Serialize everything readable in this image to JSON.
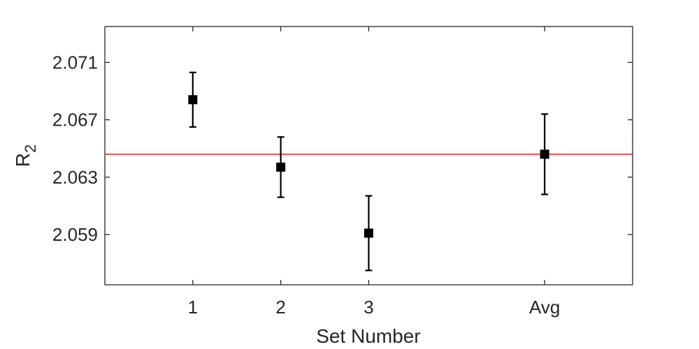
{
  "chart_data": {
    "type": "scatter",
    "title": "",
    "xlabel": "Set Number",
    "ylabel": {
      "base": "R",
      "subscript": "2"
    },
    "categories": [
      "1",
      "2",
      "3",
      "Avg"
    ],
    "x": [
      1,
      2,
      3,
      5
    ],
    "xlim": [
      0,
      6
    ],
    "ylim": [
      2.0555,
      2.0735
    ],
    "yticks": [
      "2.059",
      "2.063",
      "2.067",
      "2.071"
    ],
    "series": [
      {
        "values": [
          2.0684,
          2.0637,
          2.0591,
          2.0646
        ],
        "error": [
          0.0019,
          0.0021,
          0.0026,
          0.0028
        ],
        "color": "#000000",
        "marker": "square"
      }
    ],
    "reference_line": {
      "y": 2.0646,
      "color": "#ff0000"
    },
    "grid": false,
    "legend": "none"
  }
}
